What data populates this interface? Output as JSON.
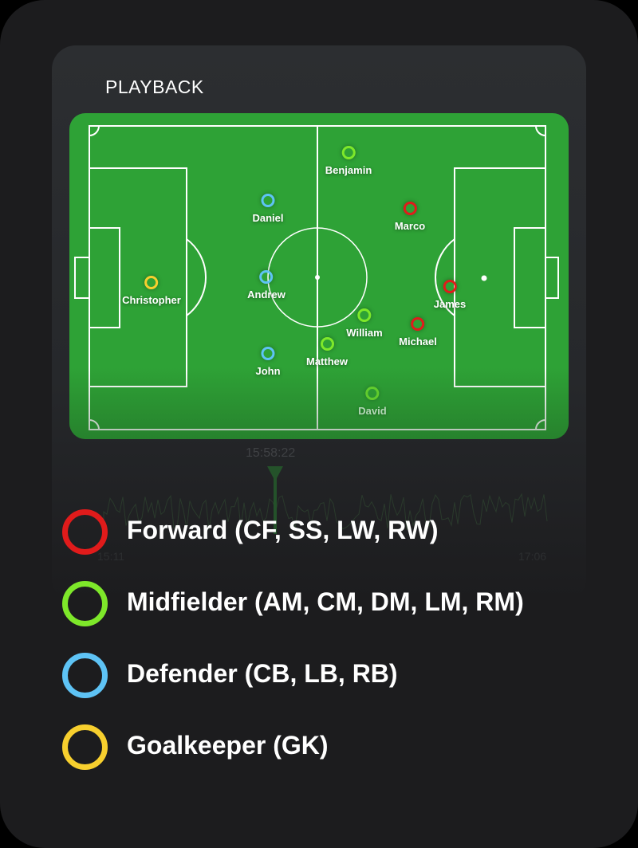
{
  "header": {
    "title": "PLAYBACK"
  },
  "players": [
    {
      "name": "Benjamin",
      "role": "midfielder"
    },
    {
      "name": "Daniel",
      "role": "defender"
    },
    {
      "name": "Marco",
      "role": "forward"
    },
    {
      "name": "Christopher",
      "role": "goalkeeper"
    },
    {
      "name": "Andrew",
      "role": "defender"
    },
    {
      "name": "James",
      "role": "forward"
    },
    {
      "name": "William",
      "role": "midfielder"
    },
    {
      "name": "Michael",
      "role": "forward"
    },
    {
      "name": "Matthew",
      "role": "midfielder"
    },
    {
      "name": "John",
      "role": "defender"
    },
    {
      "name": "David",
      "role": "midfielder"
    }
  ],
  "timeline": {
    "current_time": "15:58:22",
    "start_label": "15:11",
    "end_label": "17:06"
  },
  "legend": [
    {
      "role": "forward",
      "label": "Forward (CF, SS, LW, RW)",
      "color": "#e01b1b"
    },
    {
      "role": "midfielder",
      "label": "Midfielder (AM, CM, DM, LM, RM)",
      "color": "#7ee82a"
    },
    {
      "role": "defender",
      "label": "Defender (CB, LB, RB)",
      "color": "#5ec3f5"
    },
    {
      "role": "goalkeeper",
      "label": "Goalkeeper (GK)",
      "color": "#f7cf2e"
    }
  ],
  "colors": {
    "pitch": "#2ea236",
    "background": "#1c1c1e",
    "panel": "#2c2e31"
  }
}
